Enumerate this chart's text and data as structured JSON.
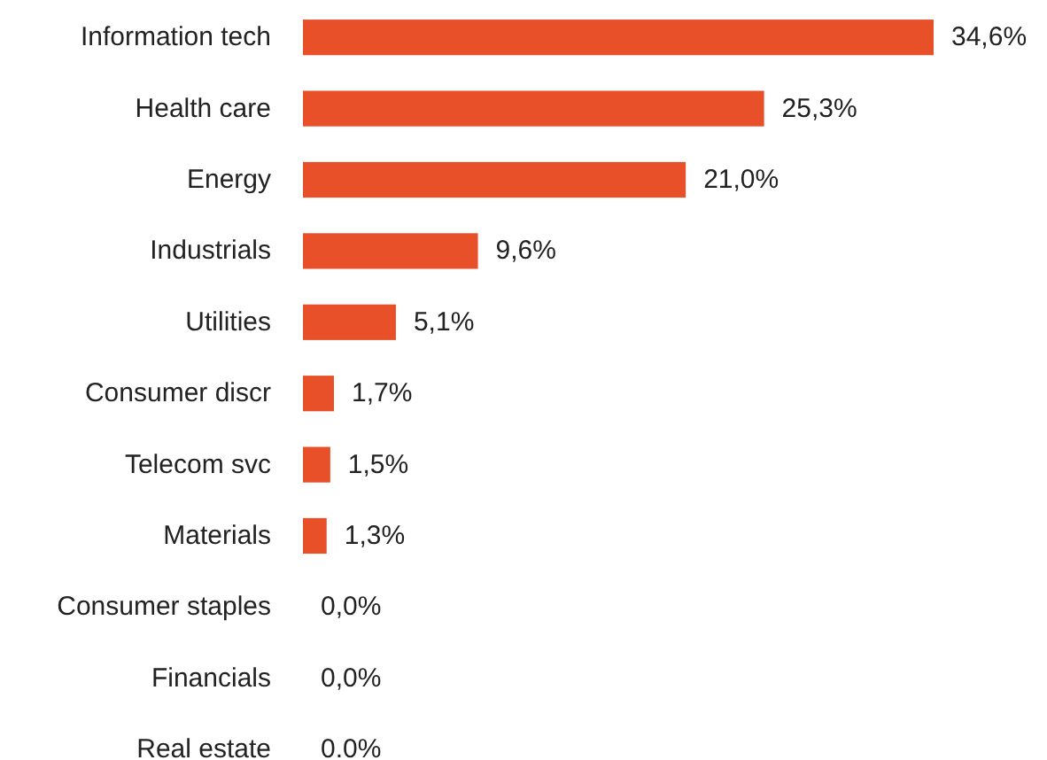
{
  "chart_data": {
    "type": "bar",
    "orientation": "horizontal",
    "categories": [
      "Information tech",
      "Health care",
      "Energy",
      "Industrials",
      "Utilities",
      "Consumer discr",
      "Telecom svc",
      "Materials",
      "Consumer staples",
      "Financials",
      "Real estate"
    ],
    "values": [
      34.6,
      25.3,
      21.0,
      9.6,
      5.1,
      1.7,
      1.5,
      1.3,
      0,
      0,
      0
    ],
    "value_labels": [
      "34,6%",
      "25,3%",
      "21,0%",
      "9,6%",
      "5,1%",
      "1,7%",
      "1,5%",
      "1,3%",
      "0,0%",
      "0,0%",
      "0.0%"
    ],
    "color": "#e8502a"
  }
}
